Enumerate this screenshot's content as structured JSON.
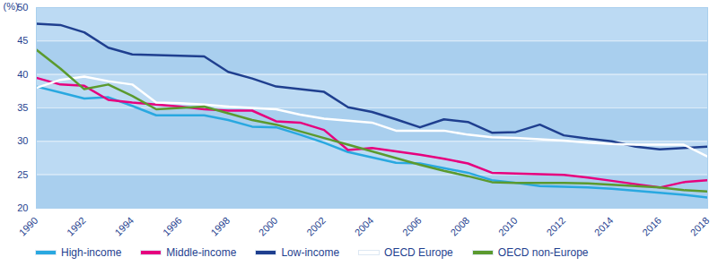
{
  "chart_data": {
    "type": "line",
    "y_label": "(%)",
    "x": [
      1990,
      1991,
      1992,
      1993,
      1994,
      1995,
      1996,
      1997,
      1998,
      1999,
      2000,
      2001,
      2002,
      2003,
      2004,
      2005,
      2006,
      2007,
      2008,
      2009,
      2010,
      2011,
      2012,
      2013,
      2014,
      2015,
      2016,
      2017,
      2018
    ],
    "series": [
      {
        "name": "High-income",
        "color": "#29a8e0",
        "values": [
          38.2,
          37.3,
          36.4,
          36.6,
          35.3,
          33.9,
          33.9,
          33.9,
          33.2,
          32.2,
          32.1,
          31.0,
          29.8,
          28.4,
          27.6,
          26.8,
          26.7,
          26.0,
          25.3,
          24.2,
          23.8,
          23.3,
          23.2,
          23.1,
          22.9,
          22.6,
          22.3,
          22.0,
          21.6
        ]
      },
      {
        "name": "Middle-income",
        "color": "#e6007e",
        "values": [
          39.5,
          38.5,
          38.3,
          36.2,
          35.8,
          35.5,
          35.2,
          34.8,
          34.6,
          34.6,
          33.0,
          32.8,
          31.7,
          28.7,
          29.0,
          28.5,
          28.0,
          27.4,
          26.7,
          25.3,
          25.2,
          25.1,
          25.0,
          24.6,
          24.1,
          23.6,
          23.1,
          23.9,
          24.2
        ]
      },
      {
        "name": "Low-income",
        "color": "#1f3f8f",
        "values": [
          47.6,
          47.4,
          46.3,
          44.0,
          43.0,
          42.9,
          42.8,
          42.7,
          40.4,
          39.4,
          38.2,
          37.8,
          37.4,
          35.1,
          34.4,
          33.3,
          32.1,
          33.3,
          32.9,
          31.3,
          31.4,
          32.5,
          30.9,
          30.4,
          30.0,
          29.2,
          28.8,
          29.0,
          29.2
        ]
      },
      {
        "name": "OECD Europe",
        "color": "#ffffff",
        "values": [
          38.0,
          39.2,
          39.7,
          39.0,
          38.5,
          35.8,
          35.7,
          35.5,
          35.2,
          35.0,
          34.8,
          34.0,
          33.4,
          33.1,
          32.8,
          31.6,
          31.6,
          31.6,
          31.0,
          30.6,
          30.5,
          30.3,
          30.1,
          29.8,
          29.6,
          29.5,
          29.5,
          29.5,
          27.7
        ]
      },
      {
        "name": "OECD non-Europe",
        "color": "#5b9a2e",
        "values": [
          43.7,
          40.9,
          37.8,
          38.5,
          36.8,
          34.8,
          35.0,
          35.2,
          34.2,
          33.2,
          32.5,
          31.5,
          30.5,
          29.5,
          28.5,
          27.5,
          26.5,
          25.6,
          24.8,
          23.9,
          23.8,
          23.8,
          23.8,
          23.7,
          23.5,
          23.3,
          23.1,
          22.7,
          22.5
        ]
      }
    ],
    "xlim": [
      1990,
      2018
    ],
    "xticks": [
      1990,
      1992,
      1994,
      1996,
      1998,
      2000,
      2002,
      2004,
      2006,
      2008,
      2010,
      2012,
      2014,
      2016,
      2018
    ],
    "ylim": [
      20,
      50
    ],
    "yticks": [
      20,
      25,
      30,
      35,
      40,
      45,
      50
    ],
    "grid": true,
    "legend": "bottom"
  }
}
